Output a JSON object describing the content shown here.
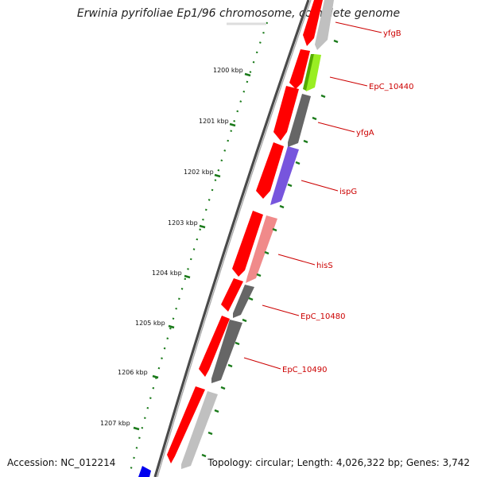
{
  "title": "Erwinia pyrifoliae Ep1/96 chromosome, complete genome",
  "accession": "Accession: NC_012214",
  "summary": "Topology: circular; Length: 4,026,322 bp; Genes: 3,742",
  "kbp_labels": [
    "1200 kbp",
    "1201 kbp",
    "1202 kbp",
    "1203 kbp",
    "1204 kbp",
    "1205 kbp",
    "1206 kbp",
    "1207 kbp"
  ],
  "gene_labels": [
    "yfgB",
    "EpC_10440",
    "yfgA",
    "ispG",
    "hisS",
    "EpC_10480",
    "EpC_10490"
  ],
  "colors": {
    "cds_track": "#ff0000",
    "tick_mark": "#1a7a1a",
    "label_text": "#cc0000",
    "backbone": "#555555",
    "gene_light_gray": "#c0c0c0",
    "gene_dark_gray": "#666666",
    "gene_green": "#99ee22",
    "gene_purple": "#7755dd",
    "gene_pink": "#f08a8a",
    "gene_blue": "#0000ee"
  }
}
